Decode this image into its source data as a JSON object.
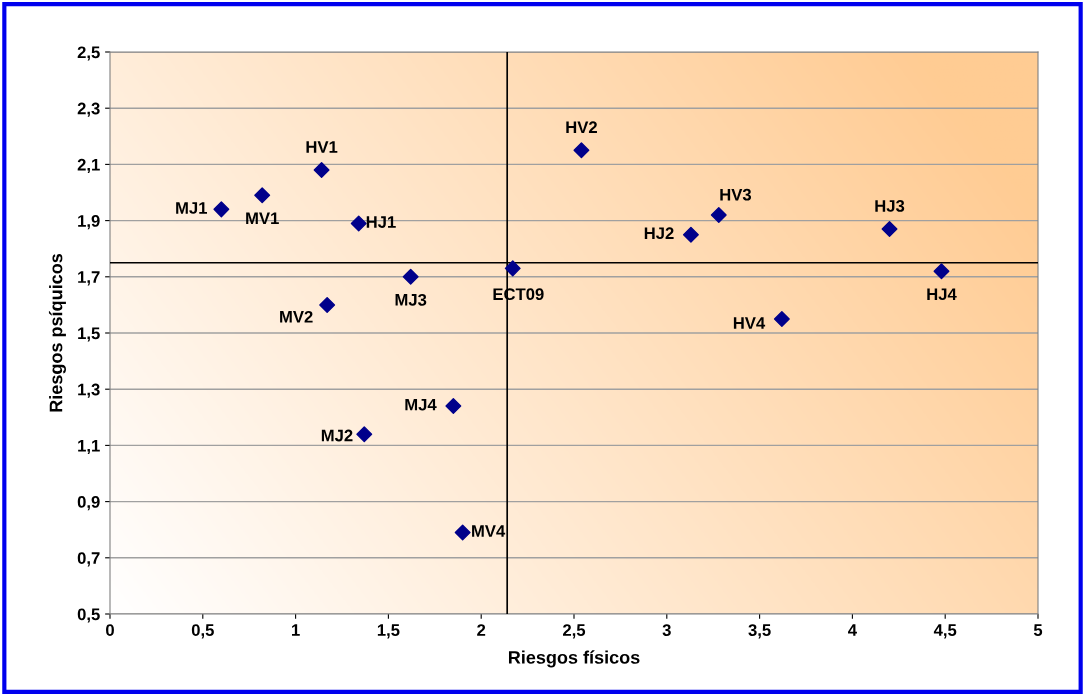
{
  "chart_data": {
    "type": "scatter",
    "xlabel": "Riesgos físicos",
    "ylabel": "Riesgos psíquicos",
    "x": [
      0.6,
      0.82,
      1.14,
      1.34,
      1.62,
      1.17,
      2.17,
      1.85,
      1.37,
      1.9,
      2.54,
      3.28,
      3.13,
      4.2,
      4.48,
      3.62
    ],
    "values": [
      1.94,
      1.99,
      2.08,
      1.89,
      1.7,
      1.6,
      1.73,
      1.24,
      1.14,
      0.79,
      2.15,
      1.92,
      1.85,
      1.87,
      1.72,
      1.55
    ],
    "color": "#00008b",
    "marker": "diamond",
    "grid": "y",
    "xlim": [
      0,
      5
    ],
    "xticks": [
      0,
      {
        "value": 0.5,
        "label": "0,5"
      },
      1,
      {
        "value": 1.5,
        "label": "1,5"
      },
      2,
      {
        "value": 2.5,
        "label": "2,5"
      },
      3,
      {
        "value": 3.5,
        "label": "3,5"
      },
      4,
      {
        "value": 4.5,
        "label": "4,5"
      },
      5
    ],
    "ylim": [
      0.5,
      2.5
    ],
    "yticks": [
      {
        "value": 0.5,
        "label": "0,5"
      },
      {
        "value": 0.7,
        "label": "0,7"
      },
      {
        "value": 0.9,
        "label": "0,9"
      },
      {
        "value": 1.1,
        "label": "1,1"
      },
      {
        "value": 1.3,
        "label": "1,3"
      },
      {
        "value": 1.5,
        "label": "1,5"
      },
      {
        "value": 1.7,
        "label": "1,7"
      },
      {
        "value": 1.9,
        "label": "1,9"
      },
      {
        "value": 2.1,
        "label": "2,1"
      },
      {
        "value": 2.3,
        "label": "2,3"
      },
      {
        "value": 2.5,
        "label": "2,5"
      }
    ],
    "ref_lines": [
      {
        "axis": "x",
        "value": 2.14,
        "color": "#000000"
      },
      {
        "axis": "y",
        "value": 1.75,
        "color": "#000000"
      }
    ],
    "annotations": [
      {
        "text": "MJ1",
        "x": 0.6,
        "y": 1.94
      },
      {
        "text": "MV1",
        "x": 0.82,
        "y": 1.99
      },
      {
        "text": "HV1",
        "x": 1.14,
        "y": 2.08
      },
      {
        "text": "HJ1",
        "x": 1.34,
        "y": 1.89
      },
      {
        "text": "MJ3",
        "x": 1.62,
        "y": 1.7
      },
      {
        "text": "MV2",
        "x": 1.17,
        "y": 1.6
      },
      {
        "text": "ECT09",
        "x": 2.17,
        "y": 1.73
      },
      {
        "text": "MJ4",
        "x": 1.85,
        "y": 1.24
      },
      {
        "text": "MJ2",
        "x": 1.37,
        "y": 1.14
      },
      {
        "text": "MV4",
        "x": 1.9,
        "y": 0.79
      },
      {
        "text": "HV2",
        "x": 2.54,
        "y": 2.15
      },
      {
        "text": "HV3",
        "x": 3.28,
        "y": 1.92
      },
      {
        "text": "HJ2",
        "x": 3.13,
        "y": 1.85
      },
      {
        "text": "HJ3",
        "x": 4.2,
        "y": 1.87
      },
      {
        "text": "HJ4",
        "x": 4.48,
        "y": 1.72
      },
      {
        "text": "HV4",
        "x": 3.62,
        "y": 1.55
      }
    ]
  }
}
